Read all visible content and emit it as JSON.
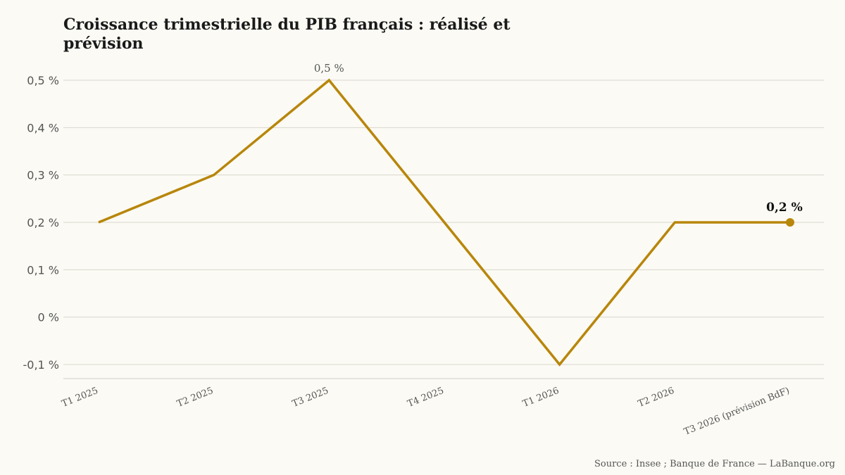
{
  "chart_data": {
    "type": "line",
    "title": "Croissance trimestrielle du PIB français : réalisé et prévision",
    "categories": [
      "T1 2025",
      "T2 2025",
      "T3 2025",
      "T4 2025",
      "T1 2026",
      "T2 2026",
      "T3 2026 (prévision BdF)"
    ],
    "series": [
      {
        "values": [
          0.2,
          0.3,
          0.5,
          0.2,
          -0.1,
          0.2,
          0.2
        ],
        "color": "#b8860b"
      }
    ],
    "ylim": [
      -0.1,
      0.5
    ],
    "yticks": [
      -0.1,
      0,
      0.1,
      0.2,
      0.3,
      0.4,
      0.5
    ],
    "ytick_labels": [
      "-0,1 %",
      "0 %",
      "0,1 %",
      "0,2 %",
      "0,3 %",
      "0,4 %",
      "0,5 %"
    ],
    "annotations": [
      {
        "category": "T3 2025",
        "value": 0.5,
        "text": "0,5 %"
      },
      {
        "category": "T3 2026 (prévision BdF)",
        "value": 0.2,
        "text": "0,2 %"
      }
    ],
    "grid": true,
    "xlabel": "",
    "ylabel": ""
  },
  "source": "Source : Insee ; Banque de France — LaBanque.org"
}
